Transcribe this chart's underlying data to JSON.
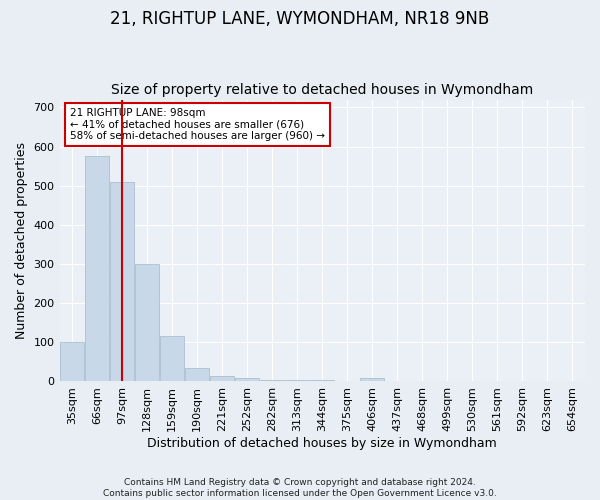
{
  "title": "21, RIGHTUP LANE, WYMONDHAM, NR18 9NB",
  "subtitle": "Size of property relative to detached houses in Wymondham",
  "xlabel": "Distribution of detached houses by size in Wymondham",
  "ylabel": "Number of detached properties",
  "footnote1": "Contains HM Land Registry data © Crown copyright and database right 2024.",
  "footnote2": "Contains public sector information licensed under the Open Government Licence v3.0.",
  "categories": [
    "35sqm",
    "66sqm",
    "97sqm",
    "128sqm",
    "159sqm",
    "190sqm",
    "221sqm",
    "252sqm",
    "282sqm",
    "313sqm",
    "344sqm",
    "375sqm",
    "406sqm",
    "437sqm",
    "468sqm",
    "499sqm",
    "530sqm",
    "561sqm",
    "592sqm",
    "623sqm",
    "654sqm"
  ],
  "values": [
    100,
    575,
    510,
    300,
    115,
    35,
    15,
    8,
    5,
    4,
    4,
    0,
    8,
    0,
    0,
    0,
    0,
    0,
    0,
    0,
    0
  ],
  "bar_color": "#c8d8e8",
  "bar_edge_color": "#a0b8cc",
  "property_line_x": 2.0,
  "property_line_color": "#cc0000",
  "annotation_text": "21 RIGHTUP LANE: 98sqm\n← 41% of detached houses are smaller (676)\n58% of semi-detached houses are larger (960) →",
  "annotation_box_color": "#ffffff",
  "annotation_box_edge_color": "#cc0000",
  "ylim": [
    0,
    720
  ],
  "yticks": [
    0,
    100,
    200,
    300,
    400,
    500,
    600,
    700
  ],
  "background_color": "#e8eef4",
  "plot_background_color": "#eaf0f6",
  "grid_color": "#ffffff",
  "title_fontsize": 12,
  "subtitle_fontsize": 10,
  "tick_fontsize": 8,
  "ylabel_fontsize": 9,
  "xlabel_fontsize": 9,
  "footnote_fontsize": 6.5
}
